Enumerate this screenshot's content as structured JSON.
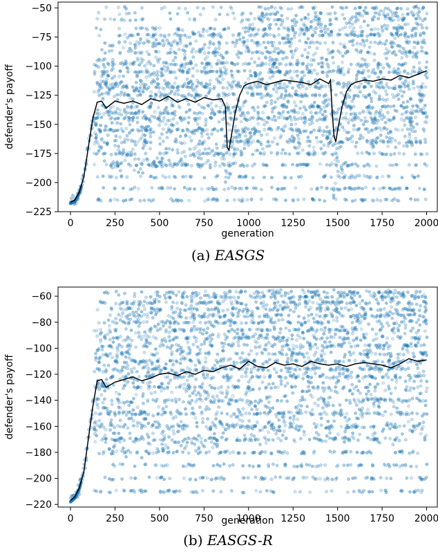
{
  "chart_data": [
    {
      "type": "scatter",
      "caption_prefix": "(a) ",
      "caption_math": "EASGS",
      "xlabel": "generation",
      "ylabel": "defender's payoff",
      "xlim": [
        -70,
        2060
      ],
      "ylim": [
        -225,
        -45
      ],
      "xticks": [
        0,
        250,
        500,
        750,
        1000,
        1250,
        1500,
        1750,
        2000
      ],
      "yticks": [
        -225,
        -200,
        -175,
        -150,
        -125,
        -100,
        -75,
        -50
      ],
      "grid": false,
      "scatter_color": "#1f77b4",
      "line_color": "#000000",
      "series": [
        {
          "role": "mean",
          "x": [
            0,
            25,
            50,
            75,
            100,
            125,
            150,
            175,
            200,
            250,
            300,
            350,
            400,
            450,
            500,
            550,
            600,
            650,
            700,
            750,
            800,
            850,
            870,
            880,
            890,
            900,
            925,
            950,
            975,
            1000,
            1050,
            1100,
            1150,
            1200,
            1250,
            1300,
            1350,
            1400,
            1450,
            1460,
            1470,
            1480,
            1490,
            1500,
            1525,
            1550,
            1575,
            1600,
            1650,
            1700,
            1750,
            1800,
            1850,
            1900,
            1950,
            2000
          ],
          "y": [
            -217,
            -215,
            -208,
            -195,
            -170,
            -145,
            -131,
            -130,
            -136,
            -130,
            -132,
            -130,
            -133,
            -128,
            -130,
            -126,
            -131,
            -128,
            -131,
            -127,
            -129,
            -128,
            -135,
            -170,
            -172,
            -163,
            -140,
            -125,
            -117,
            -115,
            -113,
            -116,
            -114,
            -112,
            -113,
            -114,
            -116,
            -111,
            -115,
            -112,
            -140,
            -160,
            -165,
            -155,
            -135,
            -122,
            -116,
            -114,
            -112,
            -113,
            -111,
            -112,
            -108,
            -110,
            -107,
            -104
          ]
        }
      ],
      "scatter_bands": [
        -215,
        -205,
        -195,
        -185,
        -175,
        -165,
        -155,
        -145,
        -140,
        -135,
        -125,
        -118,
        -115,
        -105,
        -98,
        -88,
        -80,
        -73,
        -68,
        -60,
        -55,
        -50
      ]
    },
    {
      "type": "scatter",
      "caption_prefix": "(b) ",
      "caption_math": "EASGS-R",
      "xlabel": "generation",
      "ylabel": "defender's payoff",
      "xlim": [
        -70,
        2060
      ],
      "ylim": [
        -222,
        -53
      ],
      "xticks": [
        0,
        250,
        500,
        750,
        1000,
        1250,
        1500,
        1750,
        2000
      ],
      "yticks": [
        -220,
        -200,
        -180,
        -160,
        -140,
        -120,
        -100,
        -80,
        -60
      ],
      "grid": false,
      "scatter_color": "#1f77b4",
      "line_color": "#000000",
      "series": [
        {
          "role": "mean",
          "x": [
            0,
            25,
            50,
            75,
            100,
            125,
            150,
            175,
            200,
            250,
            300,
            350,
            400,
            450,
            500,
            550,
            600,
            650,
            700,
            750,
            800,
            850,
            900,
            950,
            1000,
            1050,
            1100,
            1150,
            1200,
            1250,
            1300,
            1350,
            1400,
            1450,
            1500,
            1550,
            1600,
            1650,
            1700,
            1750,
            1800,
            1850,
            1900,
            1950,
            2000
          ],
          "y": [
            -217,
            -214,
            -207,
            -195,
            -170,
            -145,
            -125,
            -124,
            -130,
            -126,
            -124,
            -122,
            -125,
            -123,
            -120,
            -119,
            -121,
            -118,
            -120,
            -117,
            -118,
            -115,
            -113,
            -116,
            -110,
            -114,
            -115,
            -111,
            -113,
            -112,
            -114,
            -110,
            -112,
            -113,
            -112,
            -114,
            -112,
            -111,
            -112,
            -113,
            -115,
            -112,
            -108,
            -110,
            -109
          ]
        }
      ],
      "scatter_bands": [
        -218,
        -210,
        -200,
        -190,
        -180,
        -170,
        -160,
        -150,
        -140,
        -130,
        -122,
        -116,
        -110,
        -104,
        -98,
        -92,
        -86,
        -80,
        -75,
        -70,
        -65,
        -60,
        -57
      ]
    }
  ]
}
